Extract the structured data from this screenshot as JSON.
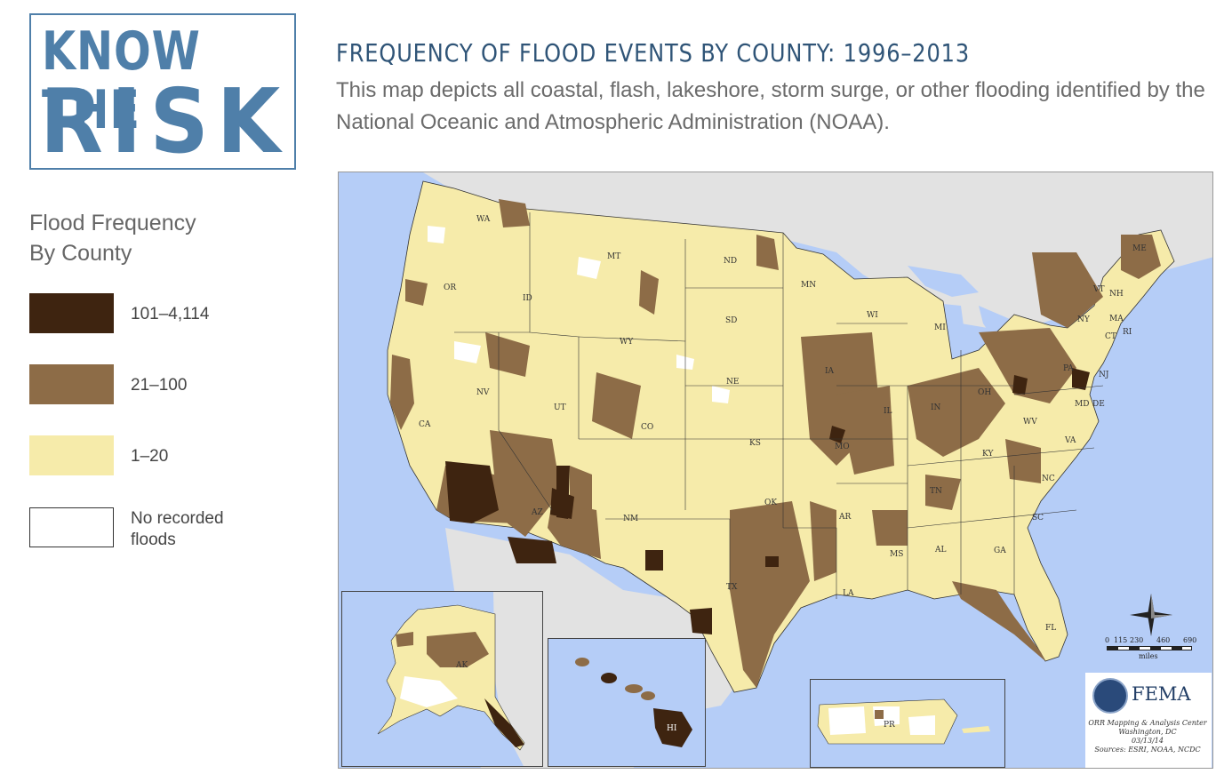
{
  "logo": {
    "line1": "KNOW THE",
    "line2": "RISK"
  },
  "header": {
    "title": "FREQUENCY OF FLOOD EVENTS BY COUNTY: 1996–2013",
    "subtitle": "This map depicts all coastal, flash, lakeshore, storm surge, or other flooding identified by the National Oceanic and Atmospheric Administration (NOAA)."
  },
  "legend": {
    "title_line1": "Flood Frequency",
    "title_line2": "By County",
    "items": [
      {
        "label": "101–4,114",
        "color": "#3e2410"
      },
      {
        "label": "21–100",
        "color": "#8d6c47"
      },
      {
        "label": "1–20",
        "color": "#f6ebaa"
      },
      {
        "label": "No recorded floods",
        "color": "#ffffff"
      }
    ]
  },
  "map": {
    "colors": {
      "water": "#b5cdf7",
      "foreign_land": "#e2e2e2",
      "low": "#f6ebaa",
      "mid": "#8d6c47",
      "high": "#3e2410",
      "none": "#ffffff"
    },
    "state_labels": [
      "WA",
      "MT",
      "ND",
      "MN",
      "OR",
      "ID",
      "SD",
      "WY",
      "WI",
      "MI",
      "NY",
      "VT",
      "NH",
      "ME",
      "MA",
      "CT",
      "RI",
      "NV",
      "UT",
      "NE",
      "IA",
      "IL",
      "IN",
      "OH",
      "PA",
      "NJ",
      "CA",
      "CO",
      "KS",
      "MO",
      "KY",
      "WV",
      "VA",
      "MD",
      "DE",
      "AZ",
      "NM",
      "OK",
      "AR",
      "TN",
      "NC",
      "SC",
      "TX",
      "LA",
      "MS",
      "AL",
      "GA",
      "FL",
      "AK",
      "HI",
      "PR"
    ],
    "scale": {
      "ticks": [
        "0",
        "115",
        "230",
        "460",
        "690"
      ],
      "unit": "miles"
    },
    "credits": {
      "agency": "FEMA",
      "lines": [
        "ORR Mapping & Analysis Center",
        "Washington, DC",
        "03/13/14",
        "Sources: ESRI, NOAA, NCDC"
      ]
    }
  }
}
